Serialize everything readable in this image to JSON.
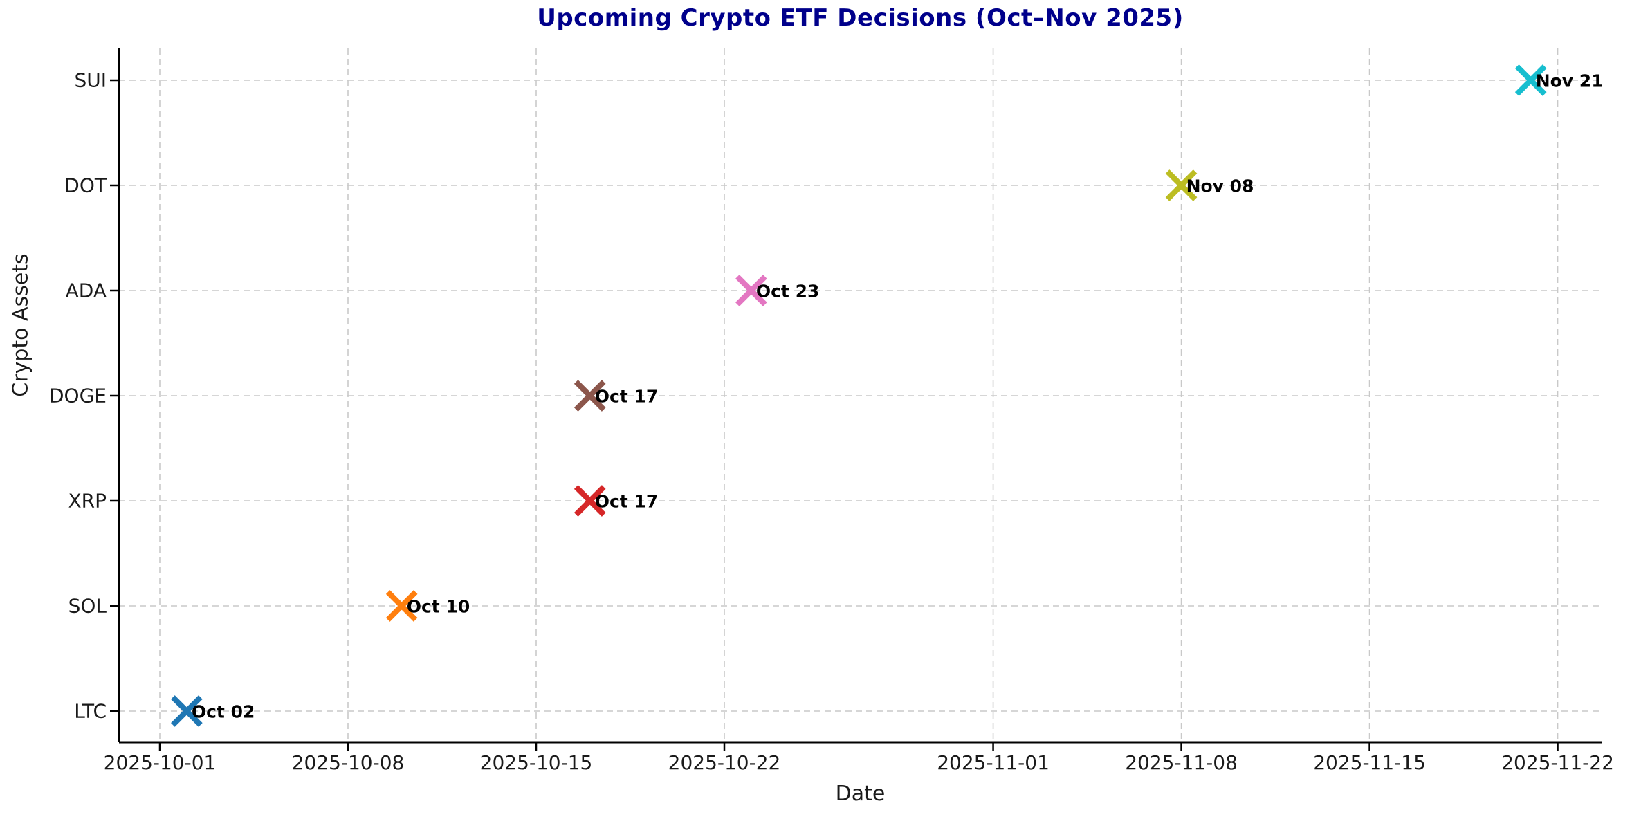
{
  "chart_data": {
    "type": "scatter",
    "title": "Upcoming Crypto ETF Decisions (Oct–Nov 2025)",
    "title_color": "#00008B",
    "xlabel": "Date",
    "ylabel": "Crypto Assets",
    "categories": [
      "LTC",
      "SOL",
      "XRP",
      "DOGE",
      "ADA",
      "DOT",
      "SUI"
    ],
    "x_tick_labels": [
      "2025-10-01",
      "2025-10-08",
      "2025-10-15",
      "2025-10-22",
      "2025-11-01",
      "2025-11-08",
      "2025-11-15",
      "2025-11-22"
    ],
    "xlim": [
      "2025-09-29",
      "2025-11-24"
    ],
    "grid": "dashed-both-axes",
    "legend": "none",
    "marker_style": "x",
    "points": [
      {
        "asset": "LTC",
        "date": "2025-10-02",
        "annotation": "Oct 02",
        "color": "#1f77b4"
      },
      {
        "asset": "SOL",
        "date": "2025-10-10",
        "annotation": "Oct 10",
        "color": "#ff7f0e"
      },
      {
        "asset": "XRP",
        "date": "2025-10-17",
        "annotation": "Oct 17",
        "color": "#d62728"
      },
      {
        "asset": "DOGE",
        "date": "2025-10-17",
        "annotation": "Oct 17",
        "color": "#8c564b"
      },
      {
        "asset": "ADA",
        "date": "2025-10-23",
        "annotation": "Oct 23",
        "color": "#e377c2"
      },
      {
        "asset": "DOT",
        "date": "2025-11-08",
        "annotation": "Nov 08",
        "color": "#bcbd22"
      },
      {
        "asset": "SUI",
        "date": "2025-11-21",
        "annotation": "Nov 21",
        "color": "#17becf"
      }
    ]
  }
}
